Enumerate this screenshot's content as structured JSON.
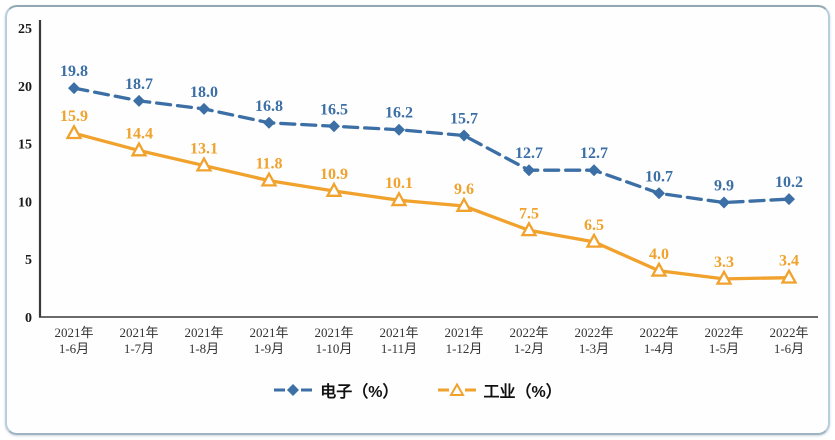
{
  "panel": {
    "background": "#fefefe",
    "border_color": "#b7cedd",
    "border_top_color": "#92a9b4"
  },
  "chart_data": {
    "type": "line",
    "title": "",
    "xlabel": "",
    "ylabel": "",
    "ylim": [
      0,
      25
    ],
    "yticks": [
      0,
      5,
      10,
      15,
      20,
      25
    ],
    "grid": false,
    "legend_position": "bottom",
    "axis_color": "#3a3a3a",
    "tick_label_color": "#1a1a1a",
    "x_label_color": "#333333",
    "categories": [
      [
        "2021年",
        "1-6月"
      ],
      [
        "2021年",
        "1-7月"
      ],
      [
        "2021年",
        "1-8月"
      ],
      [
        "2021年",
        "1-9月"
      ],
      [
        "2021年",
        "1-10月"
      ],
      [
        "2021年",
        "1-11月"
      ],
      [
        "2021年",
        "1-12月"
      ],
      [
        "2022年",
        "1-2月"
      ],
      [
        "2022年",
        "1-3月"
      ],
      [
        "2022年",
        "1-4月"
      ],
      [
        "2022年",
        "1-5月"
      ],
      [
        "2022年",
        "1-6月"
      ]
    ],
    "series": [
      {
        "name": "电子（%）",
        "values": [
          19.8,
          18.7,
          18.0,
          16.8,
          16.5,
          16.2,
          15.7,
          12.7,
          12.7,
          10.7,
          9.9,
          10.2
        ],
        "color": "#3c6fa5",
        "marker": "diamond",
        "line_style": "dashed"
      },
      {
        "name": "工业（%）",
        "values": [
          15.9,
          14.4,
          13.1,
          11.8,
          10.9,
          10.1,
          9.6,
          7.5,
          6.5,
          4.0,
          3.3,
          3.4
        ],
        "color": "#f0a22d",
        "marker": "triangle-open",
        "line_style": "solid"
      }
    ]
  }
}
